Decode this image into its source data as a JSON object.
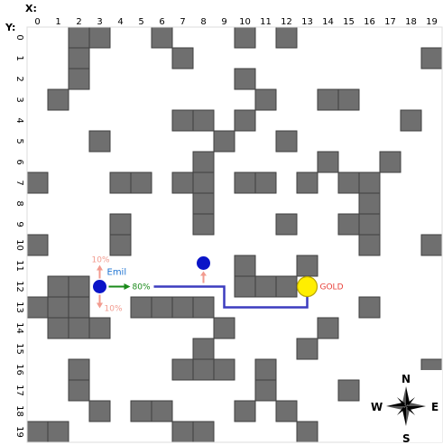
{
  "axes": {
    "x_title": "X:",
    "y_title": "Y:",
    "x_ticks": [
      "0",
      "1",
      "2",
      "3",
      "4",
      "5",
      "6",
      "7",
      "8",
      "9",
      "10",
      "11",
      "12",
      "13",
      "14",
      "15",
      "16",
      "17",
      "18",
      "19"
    ],
    "y_ticks": [
      "0",
      "1",
      "2",
      "3",
      "4",
      "5",
      "6",
      "7",
      "8",
      "9",
      "10",
      "11",
      "12",
      "13",
      "14",
      "15",
      "16",
      "17",
      "18",
      "19"
    ]
  },
  "grid": {
    "cols": 20,
    "rows": 20
  },
  "walls": [
    [
      2,
      0
    ],
    [
      3,
      0
    ],
    [
      6,
      0
    ],
    [
      10,
      0
    ],
    [
      12,
      0
    ],
    [
      2,
      1
    ],
    [
      7,
      1
    ],
    [
      19,
      1
    ],
    [
      2,
      2
    ],
    [
      10,
      2
    ],
    [
      1,
      3
    ],
    [
      11,
      3
    ],
    [
      14,
      3
    ],
    [
      15,
      3
    ],
    [
      7,
      4
    ],
    [
      8,
      4
    ],
    [
      10,
      4
    ],
    [
      18,
      4
    ],
    [
      3,
      5
    ],
    [
      9,
      5
    ],
    [
      12,
      5
    ],
    [
      8,
      6
    ],
    [
      14,
      6
    ],
    [
      17,
      6
    ],
    [
      0,
      7
    ],
    [
      4,
      7
    ],
    [
      5,
      7
    ],
    [
      7,
      7
    ],
    [
      8,
      7
    ],
    [
      10,
      7
    ],
    [
      11,
      7
    ],
    [
      13,
      7
    ],
    [
      15,
      7
    ],
    [
      16,
      7
    ],
    [
      8,
      8
    ],
    [
      16,
      8
    ],
    [
      4,
      9
    ],
    [
      8,
      9
    ],
    [
      12,
      9
    ],
    [
      15,
      9
    ],
    [
      16,
      9
    ],
    [
      0,
      10
    ],
    [
      4,
      10
    ],
    [
      16,
      10
    ],
    [
      19,
      10
    ],
    [
      10,
      11
    ],
    [
      13,
      11
    ],
    [
      1,
      12
    ],
    [
      2,
      12
    ],
    [
      10,
      12
    ],
    [
      11,
      12
    ],
    [
      12,
      12
    ],
    [
      0,
      13
    ],
    [
      1,
      13
    ],
    [
      2,
      13
    ],
    [
      5,
      13
    ],
    [
      6,
      13
    ],
    [
      7,
      13
    ],
    [
      8,
      13
    ],
    [
      16,
      13
    ],
    [
      1,
      14
    ],
    [
      2,
      14
    ],
    [
      3,
      14
    ],
    [
      9,
      14
    ],
    [
      14,
      14
    ],
    [
      8,
      15
    ],
    [
      13,
      15
    ],
    [
      2,
      16
    ],
    [
      7,
      16
    ],
    [
      8,
      16
    ],
    [
      9,
      16
    ],
    [
      11,
      16
    ],
    [
      19,
      16
    ],
    [
      2,
      17
    ],
    [
      11,
      17
    ],
    [
      15,
      17
    ],
    [
      3,
      18
    ],
    [
      5,
      18
    ],
    [
      6,
      18
    ],
    [
      10,
      18
    ],
    [
      12,
      18
    ],
    [
      0,
      19
    ],
    [
      1,
      19
    ],
    [
      7,
      19
    ],
    [
      8,
      19
    ],
    [
      13,
      19
    ]
  ],
  "agent": {
    "name": "Emil",
    "cell": [
      3,
      12
    ],
    "color": "#0a14c8",
    "label_color": "#1e73d2"
  },
  "other_agent": {
    "cell": [
      8,
      11
    ],
    "color": "#0a14c8"
  },
  "gold": {
    "label": "GOLD",
    "cell": [
      13,
      12
    ],
    "fill": "#ffee00",
    "stroke": "#b8a400",
    "label_color": "#e8413a"
  },
  "probabilities": {
    "up": "10%",
    "down": "10%",
    "right": "80%",
    "side_color": "#f29b8f",
    "main_color": "#1a8a1a"
  },
  "path": {
    "color": "#3c3cbf",
    "points": [
      [
        3,
        12
      ],
      [
        9,
        12
      ],
      [
        9,
        13
      ],
      [
        13,
        13
      ],
      [
        13,
        12
      ]
    ]
  },
  "compass": {
    "n": "N",
    "s": "S",
    "e": "E",
    "w": "W"
  }
}
